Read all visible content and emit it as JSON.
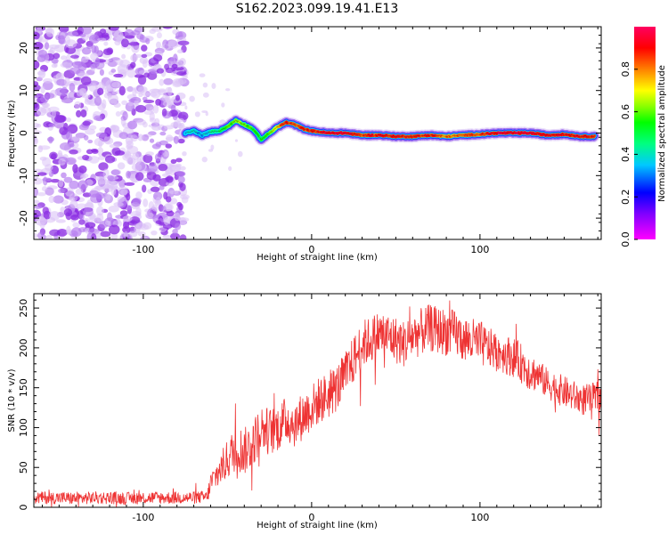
{
  "title": "S162.2023.099.19.41.E13",
  "colors": {
    "snr_line": "#ee3333",
    "ridge_core": "#ff2020",
    "noise": "#8a2be2"
  },
  "colorbar": {
    "label": "Normalized spectral amplitude",
    "ticks": [
      0.0,
      0.2,
      0.4,
      0.6,
      0.8
    ],
    "tick_labels": [
      "0.0",
      "0.2",
      "0.4",
      "0.6",
      "0.8"
    ],
    "range": [
      0,
      1
    ],
    "colormap": "gist_rainbow (magenta-blue-cyan-green-yellow-red-pink)"
  },
  "chart_data": [
    {
      "type": "heatmap",
      "xlabel": "Height of straight line (km)",
      "ylabel": "Frequency (Hz)",
      "xlim": [
        -165,
        172
      ],
      "ylim": [
        -25,
        25
      ],
      "xticks": [
        -100,
        0,
        100
      ],
      "xtick_labels": [
        "-100",
        "0",
        "100"
      ],
      "yticks": [
        20,
        10,
        0,
        -10,
        -20
      ],
      "ytick_labels": [
        "20",
        "10",
        "0",
        "-10",
        "-20"
      ],
      "noise_region_x": [
        -165,
        -75
      ],
      "noise_amplitude_range": [
        0.0,
        0.25
      ],
      "ridge": {
        "x": [
          -75,
          -70,
          -65,
          -60,
          -55,
          -50,
          -45,
          -40,
          -35,
          -30,
          -25,
          -20,
          -15,
          -10,
          -5,
          0,
          10,
          20,
          30,
          40,
          50,
          60,
          70,
          80,
          90,
          100,
          110,
          120,
          130,
          140,
          150,
          160,
          168
        ],
        "freq_hz": [
          0,
          0.5,
          -0.5,
          0.3,
          0.5,
          1.5,
          3,
          2,
          1,
          -1.5,
          0,
          1.5,
          2.5,
          2,
          1,
          0.5,
          0,
          0,
          -0.5,
          -0.5,
          -0.8,
          -0.8,
          -0.5,
          -0.8,
          -0.5,
          -0.3,
          0,
          0,
          0,
          -0.5,
          -0.3,
          -0.8,
          -0.8
        ],
        "amplitude": [
          0.35,
          0.4,
          0.35,
          0.4,
          0.45,
          0.55,
          0.6,
          0.6,
          0.55,
          0.5,
          0.6,
          0.75,
          0.9,
          0.8,
          0.85,
          0.85,
          0.95,
          0.95,
          0.85,
          0.9,
          0.9,
          0.85,
          0.9,
          0.8,
          0.8,
          0.85,
          0.95,
          0.95,
          0.95,
          0.9,
          0.9,
          0.9,
          0.9
        ]
      }
    },
    {
      "type": "line",
      "xlabel": "Height of straight line (km)",
      "ylabel": "SNR (10 * v/v)",
      "xlim": [
        -165,
        172
      ],
      "ylim": [
        0,
        268
      ],
      "xticks": [
        -100,
        0,
        100
      ],
      "xtick_labels": [
        "-100",
        "0",
        "100"
      ],
      "yticks": [
        0,
        50,
        100,
        150,
        200,
        250
      ],
      "ytick_labels": [
        "0",
        "50",
        "100",
        "150",
        "200",
        "250"
      ],
      "series": [
        {
          "x": [
            -165,
            -150,
            -140,
            -130,
            -120,
            -110,
            -100,
            -90,
            -80,
            -70,
            -62,
            -60,
            -55,
            -50,
            -45,
            -40,
            -35,
            -30,
            -25,
            -20,
            -15,
            -10,
            -5,
            0,
            5,
            10,
            15,
            20,
            25,
            30,
            35,
            40,
            45,
            50,
            55,
            60,
            65,
            70,
            75,
            80,
            85,
            90,
            95,
            100,
            105,
            110,
            115,
            120,
            125,
            130,
            135,
            140,
            145,
            150,
            155,
            160,
            165,
            172
          ],
          "values": [
            12,
            12,
            11,
            12,
            12,
            11,
            12,
            12,
            12,
            12,
            13,
            30,
            45,
            60,
            75,
            70,
            80,
            100,
            95,
            100,
            110,
            105,
            115,
            125,
            135,
            140,
            150,
            165,
            185,
            205,
            210,
            218,
            215,
            210,
            205,
            215,
            220,
            225,
            222,
            220,
            218,
            212,
            208,
            205,
            200,
            197,
            192,
            188,
            180,
            170,
            165,
            155,
            150,
            145,
            140,
            135,
            135,
            140
          ],
          "noise_amplitude": [
            8,
            8,
            8,
            8,
            8,
            8,
            8,
            8,
            8,
            8,
            8,
            15,
            20,
            25,
            30,
            30,
            30,
            30,
            30,
            30,
            30,
            30,
            30,
            30,
            30,
            30,
            30,
            30,
            30,
            30,
            30,
            30,
            30,
            30,
            30,
            30,
            30,
            30,
            30,
            30,
            30,
            30,
            30,
            30,
            25,
            25,
            25,
            25,
            25,
            25,
            20,
            20,
            20,
            20,
            20,
            20,
            20,
            20
          ]
        }
      ]
    }
  ]
}
